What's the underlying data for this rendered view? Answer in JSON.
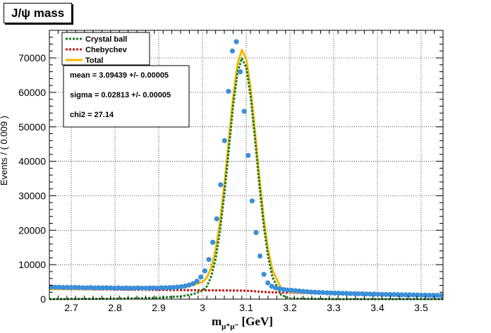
{
  "title": "J/ψ mass",
  "chart_data": {
    "type": "scatter",
    "title": "J/ψ mass",
    "xlabel": "m_{μ⁺μ⁻} [GeV]",
    "xlabel_parts": {
      "main": "m",
      "sub": "μ⁺μ⁻",
      "unit": " [GeV]"
    },
    "ylabel": "Events / ( 0.009 )",
    "xlim": [
      2.65,
      3.55
    ],
    "ylim": [
      0,
      78000
    ],
    "x_ticks": [
      2.7,
      2.8,
      2.9,
      3,
      3.1,
      3.2,
      3.3,
      3.4,
      3.5
    ],
    "x_tick_labels": [
      "2.7",
      "2.8",
      "2.9",
      "3",
      "3.1",
      "3.2",
      "3.3",
      "3.4",
      "3.5"
    ],
    "y_ticks": [
      0,
      10000,
      20000,
      30000,
      40000,
      50000,
      60000,
      70000
    ],
    "y_tick_labels": [
      "0",
      "10000",
      "20000",
      "30000",
      "40000",
      "50000",
      "60000",
      "70000"
    ],
    "grid": true,
    "legend_position": "top-left",
    "data_points": {
      "x": [
        2.6545,
        2.6635,
        2.6725,
        2.6815,
        2.6905,
        2.6995,
        2.7085,
        2.7175,
        2.7265,
        2.7355,
        2.7445,
        2.7535,
        2.7625,
        2.7715,
        2.7805,
        2.7895,
        2.7985,
        2.8075,
        2.8165,
        2.8255,
        2.8345,
        2.8435,
        2.8525,
        2.8615,
        2.8705,
        2.8795,
        2.8885,
        2.8975,
        2.9065,
        2.9155,
        2.9245,
        2.9335,
        2.9425,
        2.9515,
        2.9605,
        2.9695,
        2.9785,
        2.9875,
        2.9965,
        3.0055,
        3.0145,
        3.0235,
        3.0325,
        3.0415,
        3.0505,
        3.0595,
        3.0685,
        3.0775,
        3.0865,
        3.0955,
        3.1045,
        3.1135,
        3.1225,
        3.1315,
        3.1405,
        3.1495,
        3.1585,
        3.1675,
        3.1765,
        3.1855,
        3.1945,
        3.2035,
        3.2125,
        3.2215,
        3.2305,
        3.2395,
        3.2485,
        3.2575,
        3.2665,
        3.2755,
        3.2845,
        3.2935,
        3.3025,
        3.3115,
        3.3205,
        3.3295,
        3.3385,
        3.3475,
        3.3565,
        3.3655,
        3.3745,
        3.3835,
        3.3925,
        3.4015,
        3.4105,
        3.4195,
        3.4285,
        3.4375,
        3.4465,
        3.4555,
        3.4645,
        3.4735,
        3.4825,
        3.4915,
        3.5005,
        3.5095,
        3.5185,
        3.5275,
        3.5365,
        3.5455
      ],
      "y": [
        3500,
        3450,
        3450,
        3400,
        3400,
        3350,
        3400,
        3350,
        3300,
        3300,
        3350,
        3250,
        3300,
        3250,
        3300,
        3250,
        3200,
        3250,
        3200,
        3250,
        3200,
        3200,
        3250,
        3200,
        3200,
        3250,
        3250,
        3200,
        3300,
        3300,
        3350,
        3400,
        3500,
        3600,
        3800,
        4100,
        4500,
        5200,
        6400,
        8200,
        11500,
        16500,
        23300,
        33200,
        46000,
        60300,
        72000,
        74700,
        66000,
        54500,
        41700,
        28500,
        19300,
        12500,
        7200,
        4700,
        3700,
        3250,
        3000,
        2800,
        2650,
        2550,
        2450,
        2350,
        2250,
        2150,
        2050,
        2000,
        1950,
        1900,
        1850,
        1800,
        1750,
        1750,
        1700,
        1650,
        1600,
        1600,
        1550,
        1550,
        1500,
        1450,
        1450,
        1400,
        1400,
        1350,
        1350,
        1300,
        1300,
        1250,
        1250,
        1250,
        1200,
        1200,
        1150,
        1150,
        1100,
        1100,
        1100,
        1050
      ]
    },
    "series": [
      {
        "name": "Crystal ball",
        "color": "#1b7a1b",
        "style": "dotted",
        "x": [
          2.65,
          2.7,
          2.75,
          2.8,
          2.85,
          2.9,
          2.95,
          2.98,
          3.0,
          3.01,
          3.02,
          3.03,
          3.04,
          3.05,
          3.06,
          3.07,
          3.08,
          3.09,
          3.1,
          3.11,
          3.12,
          3.13,
          3.14,
          3.15,
          3.16,
          3.18,
          3.2,
          3.3,
          3.4,
          3.5,
          3.55
        ],
        "y": [
          0,
          50,
          100,
          150,
          250,
          400,
          800,
          1500,
          2500,
          3700,
          6600,
          11700,
          19700,
          30500,
          43100,
          55900,
          65700,
          69900,
          67300,
          58900,
          46600,
          33300,
          21400,
          12400,
          6400,
          1200,
          200,
          0,
          0,
          0,
          0
        ]
      },
      {
        "name": "Chebychev",
        "color": "#cc1111",
        "style": "dotted",
        "x": [
          2.65,
          2.75,
          2.85,
          2.95,
          3.05,
          3.1,
          3.15,
          3.2,
          3.3,
          3.4,
          3.5,
          3.55
        ],
        "y": [
          2950,
          2820,
          2720,
          2630,
          2520,
          2450,
          2000,
          1850,
          1600,
          1400,
          1200,
          1100
        ]
      },
      {
        "name": "Total",
        "color": "#f5b800",
        "style": "solid",
        "x": [
          2.65,
          2.7,
          2.75,
          2.8,
          2.85,
          2.9,
          2.95,
          2.98,
          3.0,
          3.01,
          3.02,
          3.03,
          3.04,
          3.05,
          3.06,
          3.07,
          3.08,
          3.09,
          3.1,
          3.11,
          3.12,
          3.13,
          3.14,
          3.15,
          3.16,
          3.18,
          3.2,
          3.25,
          3.3,
          3.4,
          3.5,
          3.55
        ],
        "y": [
          2950,
          2900,
          2900,
          2950,
          3000,
          3100,
          3450,
          4100,
          5000,
          6200,
          9100,
          14200,
          22200,
          33000,
          45600,
          58400,
          68100,
          72300,
          69700,
          61200,
          48800,
          35400,
          23400,
          14400,
          8400,
          3100,
          2000,
          1750,
          1600,
          1400,
          1200,
          1100
        ]
      }
    ],
    "legend": [
      "Crystal ball",
      "Chebychev",
      "Total"
    ],
    "stats": [
      "mean =  3.09439 +/- 0.00005",
      "sigma =  0.02813 +/- 0.00005",
      "chi2 = 27.14"
    ],
    "point_color": "#3a8fd9"
  }
}
